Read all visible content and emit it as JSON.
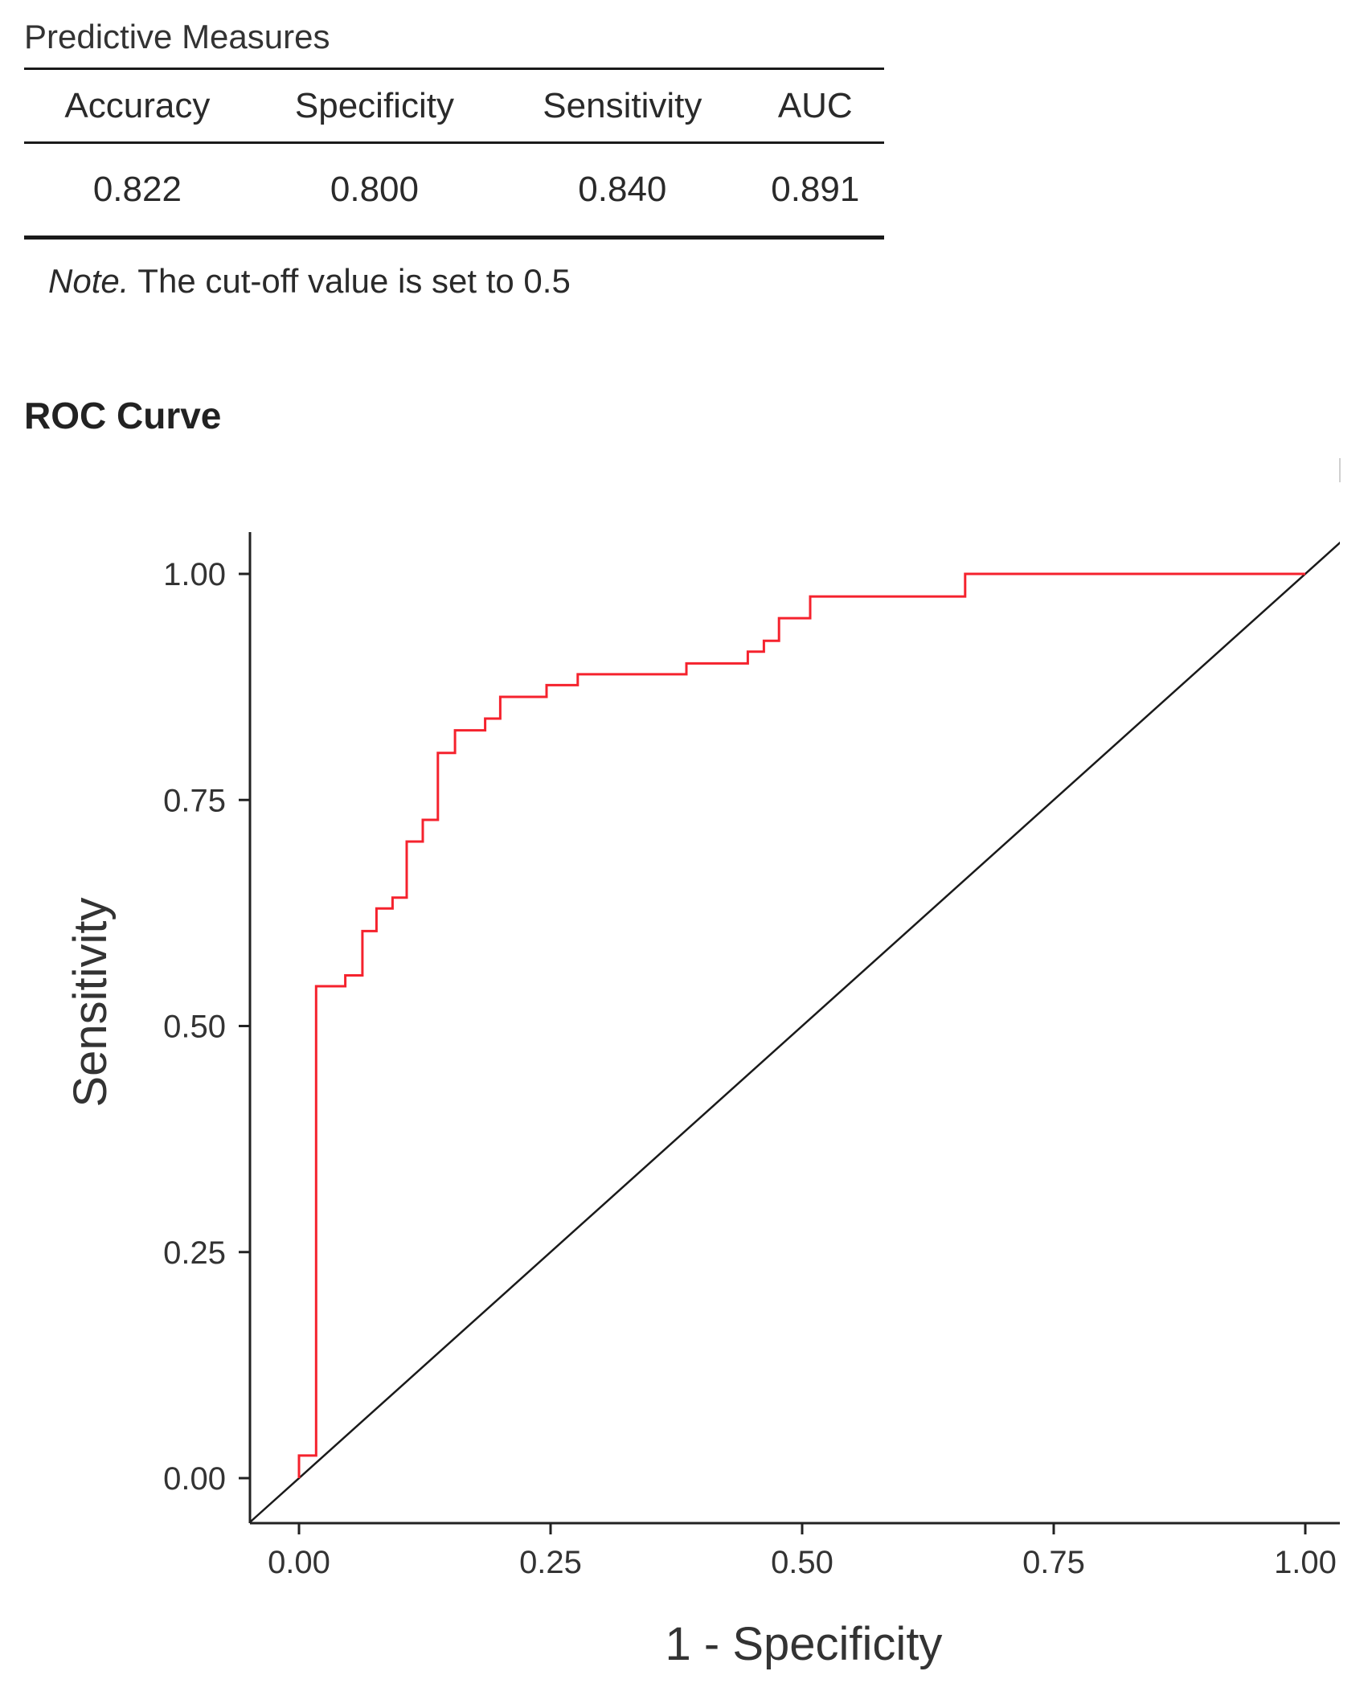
{
  "table": {
    "title": "Predictive Measures",
    "headers": [
      "Accuracy",
      "Specificity",
      "Sensitivity",
      "AUC"
    ],
    "values": [
      "0.822",
      "0.800",
      "0.840",
      "0.891"
    ],
    "note_label": "Note.",
    "note_text": " The cut-off value is set to 0.5"
  },
  "roc_title": "ROC Curve",
  "chart_data": {
    "type": "line",
    "title": "ROC Curve",
    "xlabel": "1 - Specificity",
    "ylabel": "Sensitivity",
    "xlim": [
      0,
      1
    ],
    "ylim": [
      0,
      1
    ],
    "x_ticks": [
      "0.00",
      "0.25",
      "0.50",
      "0.75",
      "1.00"
    ],
    "y_ticks": [
      "0.00",
      "0.25",
      "0.50",
      "0.75",
      "1.00"
    ],
    "grid": false,
    "series": [
      {
        "color": "#f5222d",
        "step": true,
        "points": [
          [
            0.0,
            0.0
          ],
          [
            0.0,
            0.025
          ],
          [
            0.017,
            0.025
          ],
          [
            0.017,
            0.544
          ],
          [
            0.046,
            0.544
          ],
          [
            0.046,
            0.556
          ],
          [
            0.063,
            0.556
          ],
          [
            0.063,
            0.605
          ],
          [
            0.077,
            0.605
          ],
          [
            0.077,
            0.63
          ],
          [
            0.093,
            0.63
          ],
          [
            0.093,
            0.642
          ],
          [
            0.107,
            0.642
          ],
          [
            0.107,
            0.704
          ],
          [
            0.123,
            0.704
          ],
          [
            0.123,
            0.728
          ],
          [
            0.138,
            0.728
          ],
          [
            0.138,
            0.802
          ],
          [
            0.155,
            0.802
          ],
          [
            0.155,
            0.827
          ],
          [
            0.185,
            0.827
          ],
          [
            0.185,
            0.84
          ],
          [
            0.2,
            0.84
          ],
          [
            0.2,
            0.864
          ],
          [
            0.246,
            0.864
          ],
          [
            0.246,
            0.877
          ],
          [
            0.277,
            0.877
          ],
          [
            0.277,
            0.889
          ],
          [
            0.385,
            0.889
          ],
          [
            0.385,
            0.901
          ],
          [
            0.446,
            0.901
          ],
          [
            0.446,
            0.914
          ],
          [
            0.462,
            0.914
          ],
          [
            0.462,
            0.926
          ],
          [
            0.477,
            0.926
          ],
          [
            0.477,
            0.951
          ],
          [
            0.508,
            0.951
          ],
          [
            0.508,
            0.975
          ],
          [
            0.662,
            0.975
          ],
          [
            0.662,
            1.0
          ],
          [
            1.0,
            1.0
          ]
        ]
      },
      {
        "color": "#1a1a1a",
        "step": false,
        "points": [
          [
            -0.048,
            -0.048
          ],
          [
            1.035,
            1.035
          ]
        ]
      }
    ]
  }
}
